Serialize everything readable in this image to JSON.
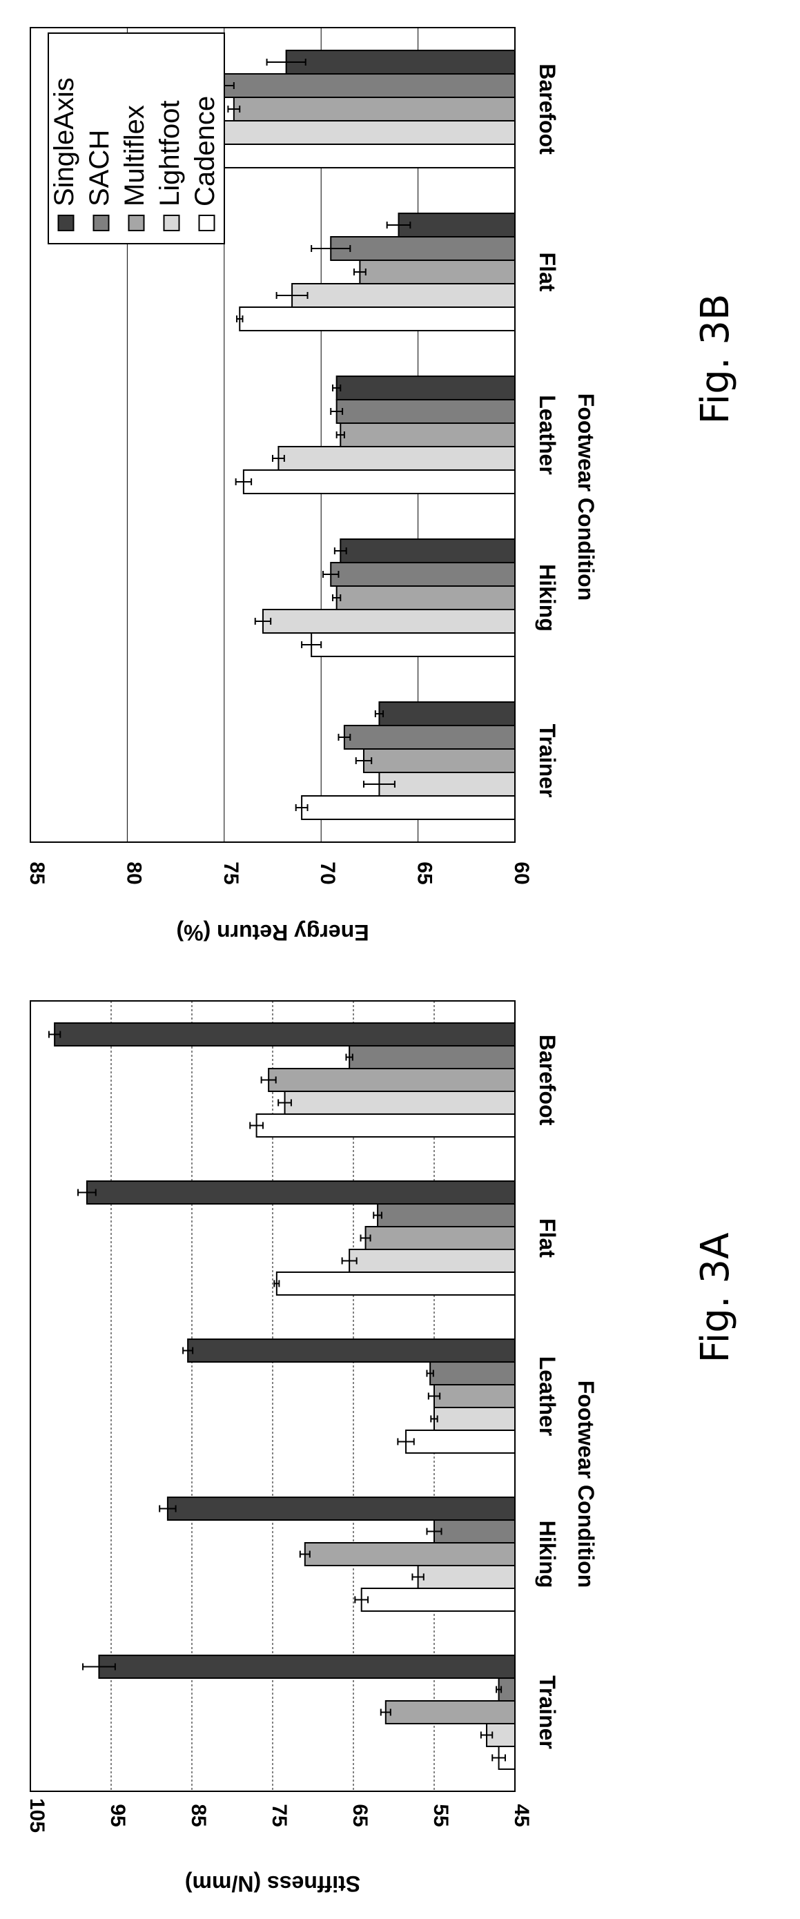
{
  "chart_data": [
    {
      "type": "bar",
      "figure_label": "Fig. 3A",
      "xlabel": "Footwear Condition",
      "ylabel": "Stiffness (N/mm)",
      "ylim": [
        45,
        105
      ],
      "yticks": [
        105,
        95,
        85,
        75,
        65,
        55,
        45
      ],
      "grid": true,
      "legend": "none",
      "categories": [
        "Barefoot",
        "Flat",
        "Leather",
        "Hiking",
        "Trainer"
      ],
      "series": [
        {
          "name": "Cadence",
          "values": [
            77.0,
            74.5,
            58.5,
            64.0,
            47.0
          ],
          "errors": [
            0.8,
            0.3,
            1.0,
            0.8,
            0.8
          ],
          "color": "#ffffff"
        },
        {
          "name": "Lightfoot",
          "values": [
            73.5,
            65.5,
            55.0,
            57.0,
            48.5
          ],
          "errors": [
            0.8,
            0.9,
            0.4,
            0.7,
            0.7
          ],
          "color": "#d9d9d9"
        },
        {
          "name": "Multiflex",
          "values": [
            75.5,
            63.5,
            55.0,
            71.0,
            61.0
          ],
          "errors": [
            0.9,
            0.6,
            0.7,
            0.6,
            0.6
          ],
          "color": "#a6a6a6"
        },
        {
          "name": "SACH",
          "values": [
            65.5,
            62.0,
            55.5,
            55.0,
            47.0
          ],
          "errors": [
            0.4,
            0.5,
            0.4,
            0.9,
            0.3
          ],
          "color": "#7f7f7f"
        },
        {
          "name": "SingleAxis",
          "values": [
            102.0,
            98.0,
            85.5,
            88.0,
            96.5
          ],
          "errors": [
            0.7,
            1.1,
            0.6,
            1.0,
            2.0
          ],
          "color": "#3f3f3f"
        }
      ]
    },
    {
      "type": "bar",
      "figure_label": "Fig. 3B",
      "xlabel": "Footwear Condition",
      "ylabel": "Energy Return (%)",
      "ylim": [
        60,
        85
      ],
      "yticks": [
        85,
        80,
        75,
        70,
        65,
        60
      ],
      "grid": true,
      "legend": "top-right",
      "categories": [
        "Barefoot",
        "Flat",
        "Leather",
        "Hiking",
        "Trainer"
      ],
      "series": [
        {
          "name": "Cadence",
          "values": [
            78.0,
            74.2,
            74.0,
            70.5,
            71.0
          ],
          "errors": [
            0.2,
            0.15,
            0.4,
            0.5,
            0.3
          ],
          "color": "#ffffff"
        },
        {
          "name": "Lightfoot",
          "values": [
            80.5,
            71.5,
            72.2,
            73.0,
            67.0
          ],
          "errors": [
            0.2,
            0.8,
            0.3,
            0.4,
            0.8
          ],
          "color": "#d9d9d9"
        },
        {
          "name": "Multiflex",
          "values": [
            74.5,
            68.0,
            69.0,
            69.2,
            67.8
          ],
          "errors": [
            0.3,
            0.3,
            0.2,
            0.2,
            0.4
          ],
          "color": "#a6a6a6"
        },
        {
          "name": "SACH",
          "values": [
            75.0,
            69.5,
            69.2,
            69.5,
            68.8
          ],
          "errors": [
            0.5,
            1.0,
            0.3,
            0.4,
            0.3
          ],
          "color": "#7f7f7f"
        },
        {
          "name": "SingleAxis",
          "values": [
            71.8,
            66.0,
            69.2,
            69.0,
            67.0
          ],
          "errors": [
            1.0,
            0.6,
            0.2,
            0.3,
            0.2
          ],
          "color": "#3f3f3f"
        }
      ]
    }
  ]
}
